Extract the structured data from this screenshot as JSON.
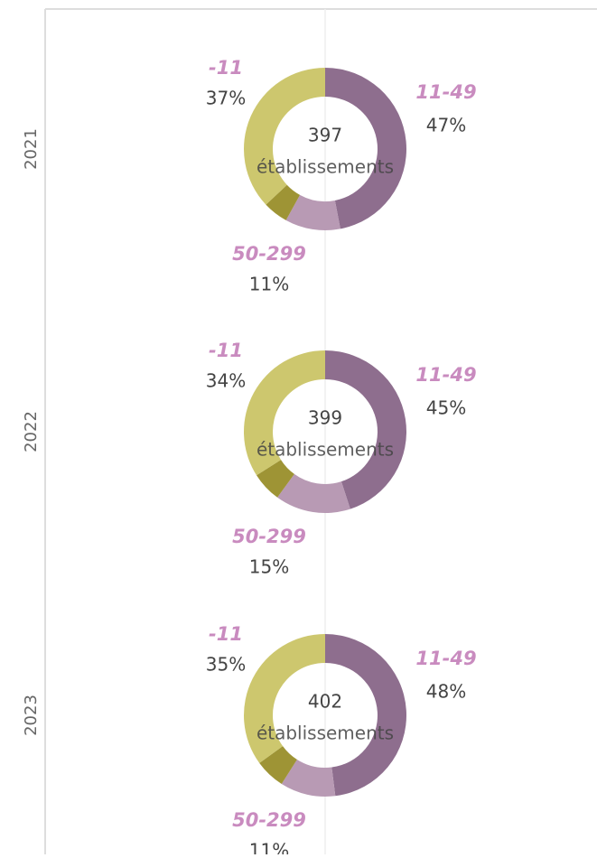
{
  "chart_data": [
    {
      "type": "donut",
      "facet": "2021",
      "categories": [
        "11-49",
        "50-299",
        null,
        "-11"
      ],
      "values": [
        47,
        11,
        5,
        37
      ],
      "value_labels": [
        "47%",
        "11%",
        null,
        "37%"
      ],
      "colors": [
        "#8e6e8e",
        "#b89ab4",
        "#9e9435",
        "#cdc76e"
      ],
      "center_value": 397,
      "center_label": "établissements"
    },
    {
      "type": "donut",
      "facet": "2022",
      "categories": [
        "11-49",
        "50-299",
        null,
        "-11"
      ],
      "values": [
        45,
        15,
        6,
        34
      ],
      "value_labels": [
        "45%",
        "15%",
        null,
        "34%"
      ],
      "colors": [
        "#8e6e8e",
        "#b89ab4",
        "#9e9435",
        "#cdc76e"
      ],
      "center_value": 399,
      "center_label": "établissements"
    },
    {
      "type": "donut",
      "facet": "2023",
      "categories": [
        "11-49",
        "50-299",
        null,
        "-11"
      ],
      "values": [
        48,
        11,
        6,
        35
      ],
      "value_labels": [
        "48%",
        "11%",
        null,
        "35%"
      ],
      "colors": [
        "#8e6e8e",
        "#b89ab4",
        "#9e9435",
        "#cdc76e"
      ],
      "center_value": 402,
      "center_label": "établissements"
    }
  ]
}
